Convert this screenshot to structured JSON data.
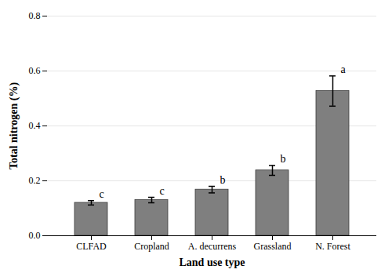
{
  "chart_data": {
    "type": "bar",
    "categories": [
      "CLFAD",
      "Cropland",
      "A. decurrens",
      "Grassland",
      "N. Forest"
    ],
    "values": [
      0.12,
      0.13,
      0.168,
      0.238,
      0.527
    ],
    "errors": [
      0.008,
      0.01,
      0.012,
      0.018,
      0.055
    ],
    "significance": [
      "c",
      "c",
      "b",
      "b",
      "a"
    ],
    "color": "#7f7f7f",
    "xlabel": "Land use type",
    "ylabel": "Total nitrogen (%)",
    "ylim": [
      0.0,
      0.8
    ],
    "yticks": [
      {
        "value": 0,
        "label": "0.0"
      },
      0.2,
      0.4,
      0.6,
      0.8
    ],
    "grid": true
  }
}
